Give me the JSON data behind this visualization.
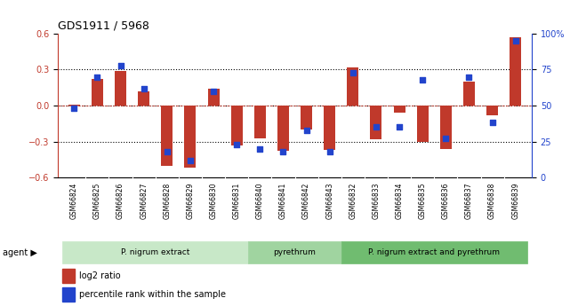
{
  "title": "GDS1911 / 5968",
  "samples": [
    "GSM66824",
    "GSM66825",
    "GSM66826",
    "GSM66827",
    "GSM66828",
    "GSM66829",
    "GSM66830",
    "GSM66831",
    "GSM66840",
    "GSM66841",
    "GSM66842",
    "GSM66843",
    "GSM66832",
    "GSM66833",
    "GSM66834",
    "GSM66835",
    "GSM66836",
    "GSM66837",
    "GSM66838",
    "GSM66839"
  ],
  "log2_ratio": [
    0.01,
    0.22,
    0.29,
    0.12,
    -0.5,
    -0.52,
    0.14,
    -0.33,
    -0.27,
    -0.38,
    -0.2,
    -0.37,
    0.32,
    -0.28,
    -0.06,
    -0.3,
    -0.36,
    0.2,
    -0.08,
    0.57
  ],
  "pct_rank": [
    48,
    70,
    78,
    62,
    18,
    12,
    60,
    23,
    20,
    18,
    33,
    18,
    73,
    35,
    35,
    68,
    27,
    70,
    38,
    95
  ],
  "groups": [
    {
      "label": "P. nigrum extract",
      "start": 0,
      "end": 8,
      "color": "#c8e8c8"
    },
    {
      "label": "pyrethrum",
      "start": 8,
      "end": 12,
      "color": "#a0d4a0"
    },
    {
      "label": "P. nigrum extract and pyrethrum",
      "start": 12,
      "end": 20,
      "color": "#70bc70"
    }
  ],
  "bar_color": "#c0392b",
  "dot_color": "#2244cc",
  "ylim_left": [
    -0.6,
    0.6
  ],
  "ylim_right": [
    0,
    100
  ],
  "yticks_left": [
    -0.6,
    -0.3,
    0.0,
    0.3,
    0.6
  ],
  "yticks_right": [
    0,
    25,
    50,
    75,
    100
  ],
  "hlines_dotted": [
    0.3,
    -0.3
  ],
  "background_color": "#ffffff",
  "plot_bg": "#ffffff",
  "xtick_bg": "#cccccc",
  "legend_log2": "log2 ratio",
  "legend_pct": "percentile rank within the sample",
  "bar_width": 0.5
}
